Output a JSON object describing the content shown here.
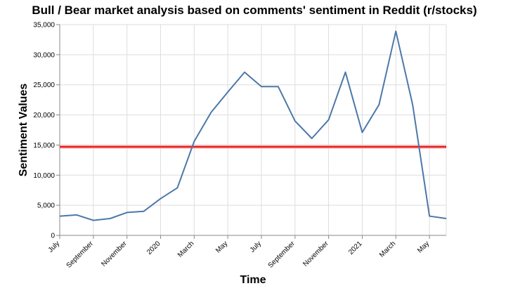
{
  "chart_data": {
    "type": "line",
    "title": "Bull / Bear market analysis based on comments' sentiment in Reddit (r/stocks)",
    "xlabel": "Time",
    "ylabel": "Sentiment Values",
    "ylim": [
      0,
      35000
    ],
    "yticks": [
      0,
      5000,
      10000,
      15000,
      20000,
      25000,
      30000,
      35000
    ],
    "ytick_labels": [
      "0",
      "5,000",
      "10,000",
      "15,000",
      "20,000",
      "25,000",
      "30,000",
      "35,000"
    ],
    "xlim": [
      "2019-07",
      "2021-06"
    ],
    "xticks": [
      {
        "date": "2019-07",
        "label": "July"
      },
      {
        "date": "2019-09",
        "label": "September"
      },
      {
        "date": "2019-11",
        "label": "November"
      },
      {
        "date": "2020-01",
        "label": "2020"
      },
      {
        "date": "2020-03",
        "label": "March"
      },
      {
        "date": "2020-05",
        "label": "May"
      },
      {
        "date": "2020-07",
        "label": "July"
      },
      {
        "date": "2020-09",
        "label": "September"
      },
      {
        "date": "2020-11",
        "label": "November"
      },
      {
        "date": "2021-01",
        "label": "2021"
      },
      {
        "date": "2021-03",
        "label": "March"
      },
      {
        "date": "2021-05",
        "label": "May"
      }
    ],
    "grid": true,
    "line_color": "#4c78a8",
    "threshold": {
      "value": 14700,
      "color": "#e8191a",
      "band_color": "#f4a3a3"
    },
    "series": [
      {
        "x": [
          "2019-07",
          "2019-08",
          "2019-09",
          "2019-10",
          "2019-11",
          "2019-12",
          "2020-01",
          "2020-02",
          "2020-03",
          "2020-04",
          "2020-05",
          "2020-06",
          "2020-07",
          "2020-08",
          "2020-09",
          "2020-10",
          "2020-11",
          "2020-12",
          "2021-01",
          "2021-02",
          "2021-03",
          "2021-04",
          "2021-05",
          "2021-06"
        ],
        "values": [
          3200,
          3400,
          2500,
          2800,
          3800,
          4000,
          6100,
          7900,
          15600,
          20400,
          23800,
          27100,
          24700,
          24700,
          19000,
          16100,
          19200,
          27100,
          17100,
          21700,
          33900,
          21700,
          3200,
          2800
        ]
      }
    ]
  }
}
